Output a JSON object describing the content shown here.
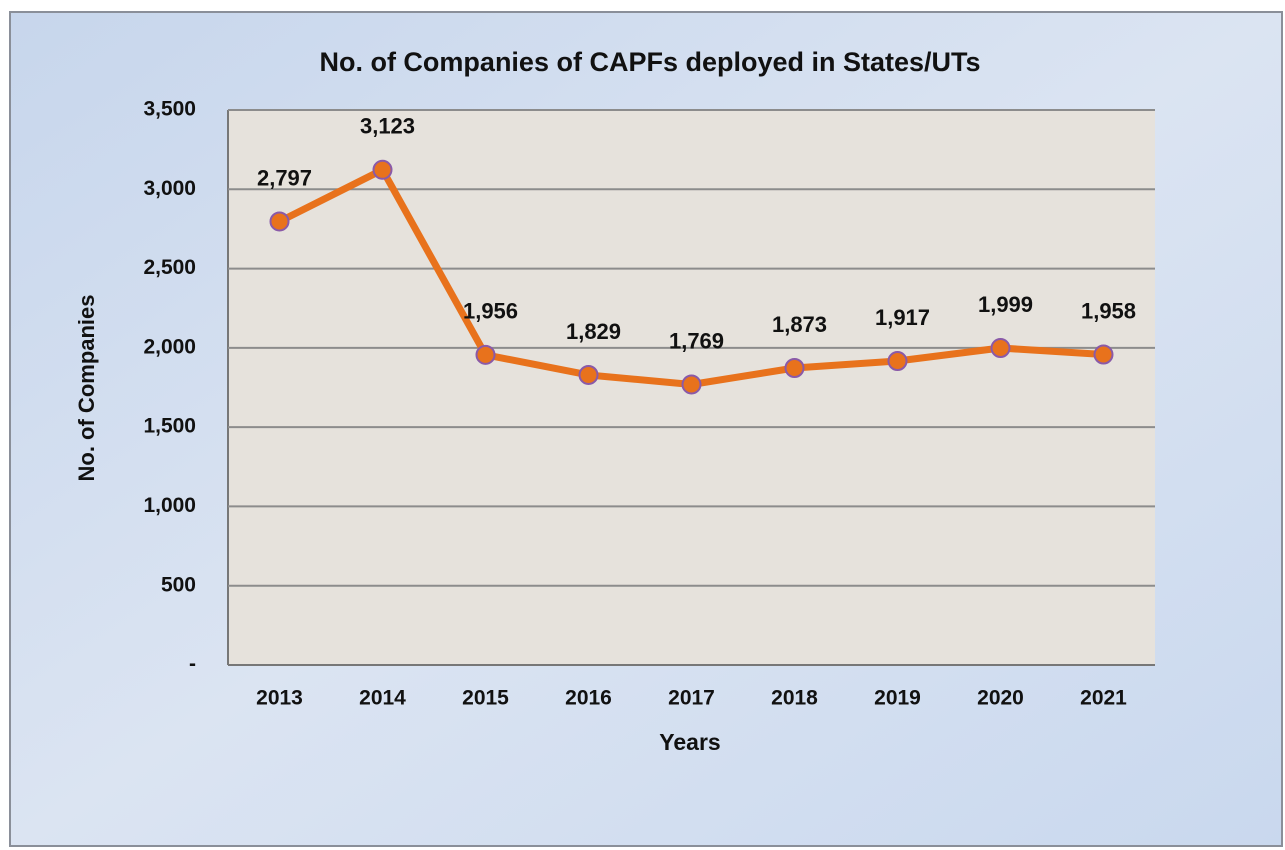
{
  "chart_data": {
    "type": "line",
    "title": "No. of Companies of  CAPFs deployed in States/UTs",
    "x_label": "Years",
    "y_label": "No. of Companies",
    "categories": [
      "2013",
      "2014",
      "2015",
      "2016",
      "2017",
      "2018",
      "2019",
      "2020",
      "2021"
    ],
    "series": [
      {
        "name": "No. of Companies",
        "color": "#e8721c",
        "values": [
          2797,
          3123,
          1956,
          1829,
          1769,
          1873,
          1917,
          1999,
          1958
        ],
        "value_labels": [
          "2,797",
          "3,123",
          "1,956",
          "1,829",
          "1,769",
          "1,873",
          "1,917",
          "1,999",
          "1,958"
        ]
      }
    ],
    "ylim": [
      0,
      3500
    ],
    "yticks": [
      {
        "value": 0,
        "label": "-"
      },
      500,
      {
        "value": 1000,
        "label": "1,000"
      },
      {
        "value": 1500,
        "label": "1,500"
      },
      {
        "value": 2000,
        "label": "2,000"
      },
      {
        "value": 2500,
        "label": "2,500"
      },
      {
        "value": 3000,
        "label": "3,000"
      },
      {
        "value": 3500,
        "label": "3,500"
      }
    ],
    "grid": true
  }
}
